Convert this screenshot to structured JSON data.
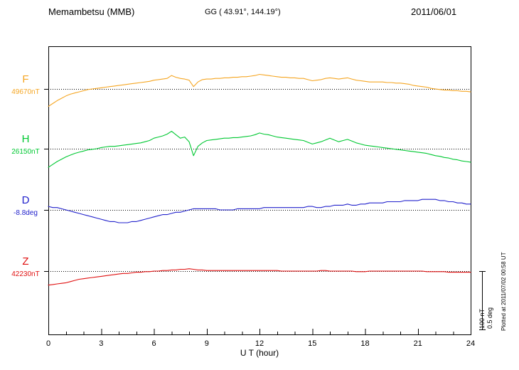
{
  "header": {
    "station": "Memambetsu (MMB)",
    "coords": "GG ( 43.91°, 144.19°)",
    "date": "2011/06/01"
  },
  "footer_note": "Plotted at 2011/07/02 00:58 UT",
  "chart_data": {
    "type": "line",
    "title": "Memambetsu (MMB) magnetogram 2011/06/01",
    "xlabel": "U T (hour)",
    "x_range": [
      0,
      24
    ],
    "x_tick_labels": [
      "0",
      "3",
      "6",
      "9",
      "12",
      "15",
      "18",
      "21",
      "24"
    ],
    "x_major_tick_hours": 3,
    "x_minor_tick_hours": 1,
    "grid": "dotted-baselines",
    "scale_bar": {
      "label_nt": "100 nT",
      "label_deg": "0.5 deg",
      "amount_nT": 100,
      "amount_deg": 0.5
    },
    "series": [
      {
        "name": "F",
        "unit": "nT",
        "baseline_value": 49670,
        "baseline_label": "49670nT",
        "color": "#f5a623",
        "x_start": 0,
        "x_step": 0.25,
        "offsets": [
          -30,
          -25,
          -20,
          -16,
          -12,
          -9,
          -7,
          -5,
          -3,
          -1,
          0,
          1,
          2,
          3,
          4,
          5,
          6,
          7,
          8,
          9,
          10,
          11,
          12,
          13,
          15,
          16,
          17,
          18,
          23,
          20,
          18,
          17,
          15,
          4,
          12,
          16,
          17,
          17,
          18,
          18,
          19,
          19,
          20,
          20,
          21,
          21,
          22,
          23,
          25,
          24,
          23,
          22,
          21,
          20,
          20,
          19,
          19,
          18,
          18,
          16,
          14,
          15,
          16,
          18,
          19,
          18,
          17,
          18,
          19,
          17,
          15,
          14,
          13,
          12,
          12,
          12,
          12,
          11,
          11,
          10,
          10,
          9,
          8,
          6,
          5,
          4,
          3,
          1,
          0,
          -1,
          -2,
          -2,
          -3,
          -3,
          -4,
          -4,
          -5
        ]
      },
      {
        "name": "H",
        "unit": "nT",
        "baseline_value": 26150,
        "baseline_label": "26150nT",
        "color": "#00c832",
        "x_start": 0,
        "x_step": 0.25,
        "offsets": [
          -32,
          -27,
          -22,
          -18,
          -14,
          -11,
          -8,
          -6,
          -4,
          -2,
          -1,
          0,
          2,
          3,
          4,
          4,
          5,
          6,
          7,
          8,
          9,
          10,
          12,
          14,
          18,
          20,
          22,
          25,
          30,
          24,
          18,
          20,
          12,
          -12,
          4,
          10,
          14,
          15,
          16,
          17,
          18,
          18,
          19,
          19,
          20,
          21,
          22,
          24,
          27,
          25,
          24,
          22,
          20,
          19,
          18,
          17,
          16,
          15,
          14,
          11,
          8,
          10,
          12,
          15,
          18,
          15,
          12,
          14,
          16,
          13,
          10,
          8,
          6,
          5,
          4,
          3,
          2,
          1,
          0,
          -1,
          -2,
          -3,
          -4,
          -5,
          -6,
          -7,
          -8,
          -10,
          -12,
          -13,
          -15,
          -16,
          -18,
          -19,
          -21,
          -22,
          -23
        ]
      },
      {
        "name": "D",
        "unit": "deg",
        "baseline_value": -8.8,
        "baseline_label": "-8.8deg",
        "color": "#2222cc",
        "x_start": 0,
        "x_step": 0.25,
        "offsets": [
          0.03,
          0.02,
          0.02,
          0.01,
          0.0,
          -0.01,
          -0.02,
          -0.03,
          -0.04,
          -0.05,
          -0.06,
          -0.07,
          -0.08,
          -0.09,
          -0.1,
          -0.1,
          -0.11,
          -0.11,
          -0.11,
          -0.1,
          -0.1,
          -0.09,
          -0.08,
          -0.07,
          -0.06,
          -0.05,
          -0.04,
          -0.04,
          -0.03,
          -0.02,
          -0.02,
          -0.01,
          0.0,
          0.01,
          0.01,
          0.01,
          0.01,
          0.01,
          0.01,
          0.0,
          0.0,
          0.0,
          0.0,
          0.01,
          0.01,
          0.01,
          0.01,
          0.01,
          0.01,
          0.02,
          0.02,
          0.02,
          0.02,
          0.02,
          0.02,
          0.02,
          0.02,
          0.02,
          0.02,
          0.03,
          0.03,
          0.02,
          0.02,
          0.03,
          0.03,
          0.04,
          0.04,
          0.04,
          0.05,
          0.04,
          0.04,
          0.05,
          0.05,
          0.06,
          0.06,
          0.06,
          0.06,
          0.07,
          0.07,
          0.07,
          0.07,
          0.08,
          0.08,
          0.08,
          0.08,
          0.09,
          0.09,
          0.09,
          0.09,
          0.08,
          0.08,
          0.07,
          0.07,
          0.06,
          0.06,
          0.05,
          0.05
        ]
      },
      {
        "name": "Z",
        "unit": "nT",
        "baseline_value": 42230,
        "baseline_label": "42230nT",
        "color": "#e01010",
        "x_start": 0,
        "x_step": 0.25,
        "offsets": [
          -24,
          -23,
          -22,
          -21,
          -20,
          -18,
          -16,
          -14,
          -13,
          -12,
          -11,
          -10,
          -9,
          -8,
          -7,
          -6,
          -5,
          -4,
          -4,
          -3,
          -2,
          -2,
          -1,
          -1,
          0,
          0,
          1,
          1,
          2,
          2,
          3,
          3,
          4,
          3,
          2,
          2,
          1,
          1,
          1,
          1,
          1,
          1,
          1,
          1,
          1,
          1,
          1,
          1,
          1,
          1,
          1,
          1,
          1,
          0,
          0,
          0,
          0,
          0,
          0,
          0,
          0,
          0,
          1,
          1,
          0,
          0,
          0,
          0,
          0,
          0,
          -1,
          -1,
          -1,
          0,
          0,
          0,
          0,
          0,
          0,
          0,
          0,
          0,
          0,
          0,
          0,
          0,
          -1,
          -1,
          -1,
          -1,
          -1,
          -2,
          -2,
          -2,
          -2,
          -2,
          -2
        ]
      }
    ]
  }
}
